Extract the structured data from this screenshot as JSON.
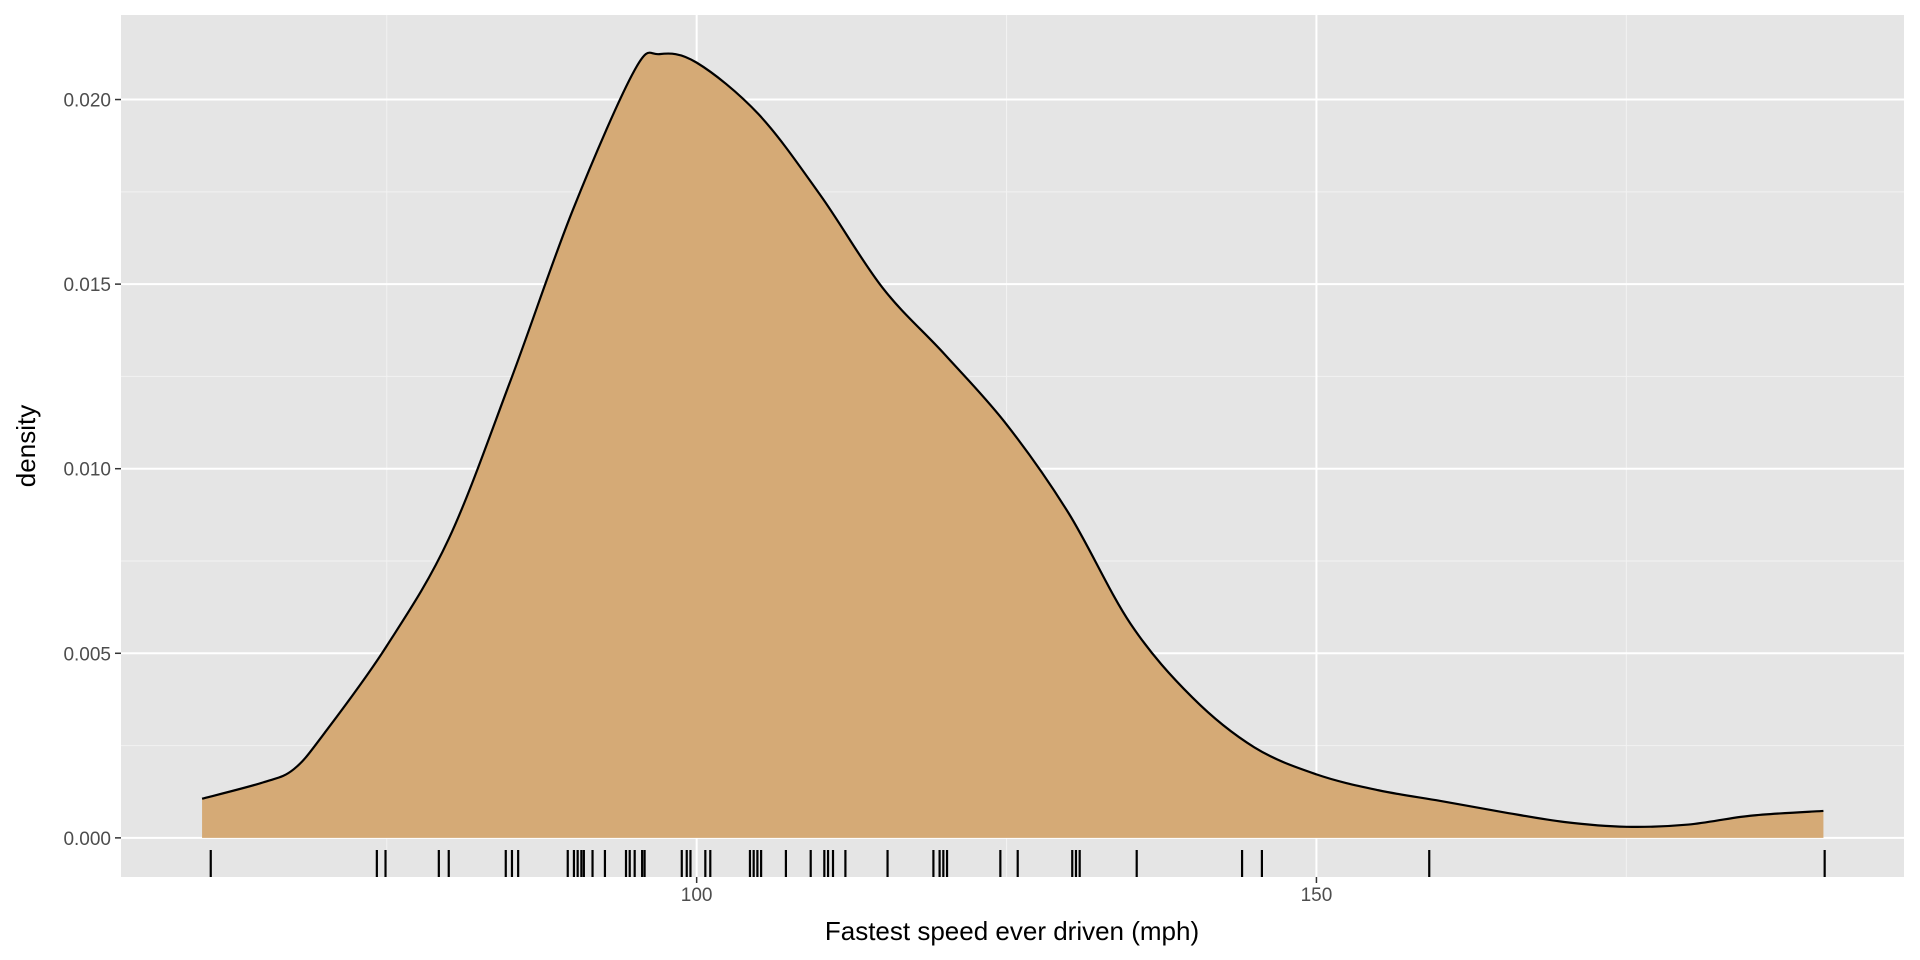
{
  "chart_data": {
    "type": "density",
    "x_label": "Fastest speed ever driven (mph)",
    "y_label": "density",
    "x": [
      60.1,
      65,
      67.5,
      70,
      75,
      80,
      85,
      90,
      95,
      97,
      100,
      105,
      110,
      115,
      120,
      125,
      130,
      135,
      140,
      145,
      150,
      155,
      160,
      165,
      170,
      175,
      180,
      185,
      190.9
    ],
    "values": [
      0.00106,
      0.0015,
      0.00186,
      0.00285,
      0.0052,
      0.0081,
      0.0124,
      0.017,
      0.0208,
      0.02123,
      0.021,
      0.0196,
      0.0174,
      0.0149,
      0.0131,
      0.0112,
      0.0088,
      0.0058,
      0.0038,
      0.00245,
      0.00172,
      0.00129,
      0.001,
      0.0007,
      0.00043,
      0.0003,
      0.00036,
      0.0006,
      0.00073
    ],
    "rug": [
      60.8,
      74.2,
      74.9,
      79.2,
      80.0,
      84.6,
      85.1,
      85.6,
      89.6,
      90.1,
      90.4,
      90.7,
      90.9,
      91.6,
      92.6,
      94.3,
      94.6,
      95.0,
      95.6,
      95.8,
      98.8,
      99.2,
      99.5,
      100.7,
      101.1,
      104.3,
      104.6,
      104.9,
      105.2,
      107.2,
      109.2,
      110.3,
      110.6,
      111.0,
      112.0,
      115.4,
      119.1,
      119.6,
      119.9,
      120.2,
      124.5,
      125.9,
      130.3,
      130.6,
      130.9,
      135.5,
      144.0,
      145.6,
      159.1,
      191.0
    ],
    "fill": "#d5aa76",
    "line_color": "#000000",
    "rug_color": "#000000",
    "panel_color": "#e5e5e5",
    "grid": true,
    "xlim": [
      53.56,
      197.4
    ],
    "ylim": [
      -0.00106,
      0.02229
    ],
    "xticks": [
      100,
      150
    ],
    "xminor": [
      75,
      125,
      175
    ],
    "yticks": [
      {
        "value": 0,
        "label": "0.000"
      },
      {
        "value": 0.005,
        "label": "0.005"
      },
      {
        "value": 0.01,
        "label": "0.010"
      },
      {
        "value": 0.015,
        "label": "0.015"
      },
      {
        "value": 0.02,
        "label": "0.020"
      }
    ],
    "yminor": [
      0.0025,
      0.0075,
      0.0125,
      0.0175
    ]
  }
}
